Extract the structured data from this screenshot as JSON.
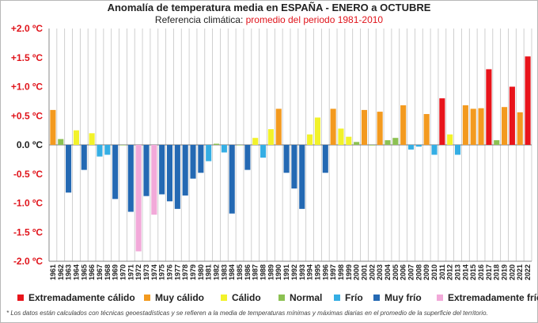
{
  "title": {
    "line1": "Anomalía de temperatura media en ESPAÑA - ENERO a OCTUBRE",
    "line2_prefix": "Referencia climática: ",
    "line2_value": "promedio del periodo 1981-2010"
  },
  "colors": {
    "Extremadamente cálido": "#e8141b",
    "Muy cálido": "#f39a1f",
    "Cálido": "#f2f22a",
    "Normal": "#8cc152",
    "Frío": "#35aee4",
    "Muy frío": "#2469b3",
    "Extremadamente frío": "#f2a9d9",
    "negative_label": "#e0141b"
  },
  "legend": [
    {
      "label": "Extremadamente cálido"
    },
    {
      "label": "Muy cálido"
    },
    {
      "label": "Cálido"
    },
    {
      "label": "Normal"
    },
    {
      "label": "Frío"
    },
    {
      "label": "Muy frío"
    },
    {
      "label": "Extremadamente frío"
    }
  ],
  "footnote": "* Los datos están calculados con técnicas geoestadísticas y se refieren a la media de temperaturas mínimas y máximas diarias en el promedio de la superficie del territorio.",
  "chart_data": {
    "type": "bar",
    "title": "Anomalía de temperatura media en ESPAÑA - ENERO a OCTUBRE",
    "subtitle": "Referencia climática: promedio del periodo 1981-2010",
    "xlabel": "",
    "ylabel": "",
    "ylim": [
      -2.0,
      2.0
    ],
    "yticks": [
      2.0,
      1.5,
      1.0,
      0.5,
      0.0,
      -0.5,
      -1.0,
      -1.5,
      -2.0
    ],
    "ytick_labels": [
      "+2.0 ºC",
      "+1.5 ºC",
      "+1.0 ºC",
      "+0.5 ºC",
      "0.0 ºC",
      "-0.5 ºC",
      "-1.0 ºC",
      "-1.5 ºC",
      "-2.0 ºC"
    ],
    "grid": "vertical",
    "legend_position": "bottom",
    "categories": [
      "1961",
      "1962",
      "1963",
      "1964",
      "1965",
      "1966",
      "1967",
      "1968",
      "1969",
      "1970",
      "1971",
      "1972",
      "1973",
      "1974",
      "1975",
      "1976",
      "1977",
      "1978",
      "1979",
      "1980",
      "1981",
      "1982",
      "1983",
      "1984",
      "1985",
      "1986",
      "1987",
      "1988",
      "1989",
      "1990",
      "1991",
      "1992",
      "1993",
      "1994",
      "1995",
      "1996",
      "1997",
      "1998",
      "1999",
      "2000",
      "2001",
      "2002",
      "2003",
      "2004",
      "2005",
      "2006",
      "2007",
      "2008",
      "2009",
      "2010",
      "2011",
      "2012",
      "2013",
      "2014",
      "2015",
      "2016",
      "2017",
      "2018",
      "2019",
      "2020",
      "2021",
      "2022"
    ],
    "values": [
      0.6,
      0.1,
      -0.82,
      0.25,
      -0.43,
      0.2,
      -0.2,
      -0.17,
      -0.93,
      0.0,
      -1.15,
      -1.83,
      -0.88,
      -1.2,
      -0.85,
      -0.97,
      -1.1,
      -0.87,
      -0.58,
      -0.48,
      -0.28,
      0.02,
      -0.13,
      -1.18,
      0.0,
      -0.43,
      0.12,
      -0.22,
      0.27,
      0.62,
      -0.48,
      -0.75,
      -1.1,
      0.18,
      0.47,
      -0.48,
      0.62,
      0.28,
      0.14,
      0.05,
      0.6,
      -0.01,
      0.57,
      0.08,
      0.12,
      0.68,
      -0.08,
      -0.03,
      0.53,
      -0.17,
      0.8,
      0.18,
      -0.17,
      0.68,
      0.62,
      0.63,
      1.3,
      0.08,
      0.65,
      1.0,
      0.56,
      1.52
    ],
    "category_classes": [
      "Muy cálido",
      "Normal",
      "Muy frío",
      "Cálido",
      "Muy frío",
      "Cálido",
      "Frío",
      "Frío",
      "Muy frío",
      "Normal",
      "Muy frío",
      "Extremadamente frío",
      "Muy frío",
      "Extremadamente frío",
      "Muy frío",
      "Muy frío",
      "Muy frío",
      "Muy frío",
      "Muy frío",
      "Muy frío",
      "Frío",
      "Normal",
      "Frío",
      "Muy frío",
      "Normal",
      "Muy frío",
      "Cálido",
      "Frío",
      "Cálido",
      "Muy cálido",
      "Muy frío",
      "Muy frío",
      "Muy frío",
      "Cálido",
      "Cálido",
      "Muy frío",
      "Muy cálido",
      "Cálido",
      "Cálido",
      "Normal",
      "Muy cálido",
      "Normal",
      "Muy cálido",
      "Normal",
      "Normal",
      "Muy cálido",
      "Frío",
      "Frío",
      "Muy cálido",
      "Frío",
      "Extremadamente cálido",
      "Cálido",
      "Frío",
      "Muy cálido",
      "Muy cálido",
      "Muy cálido",
      "Extremadamente cálido",
      "Normal",
      "Muy cálido",
      "Extremadamente cálido",
      "Muy cálido",
      "Extremadamente cálido"
    ]
  }
}
